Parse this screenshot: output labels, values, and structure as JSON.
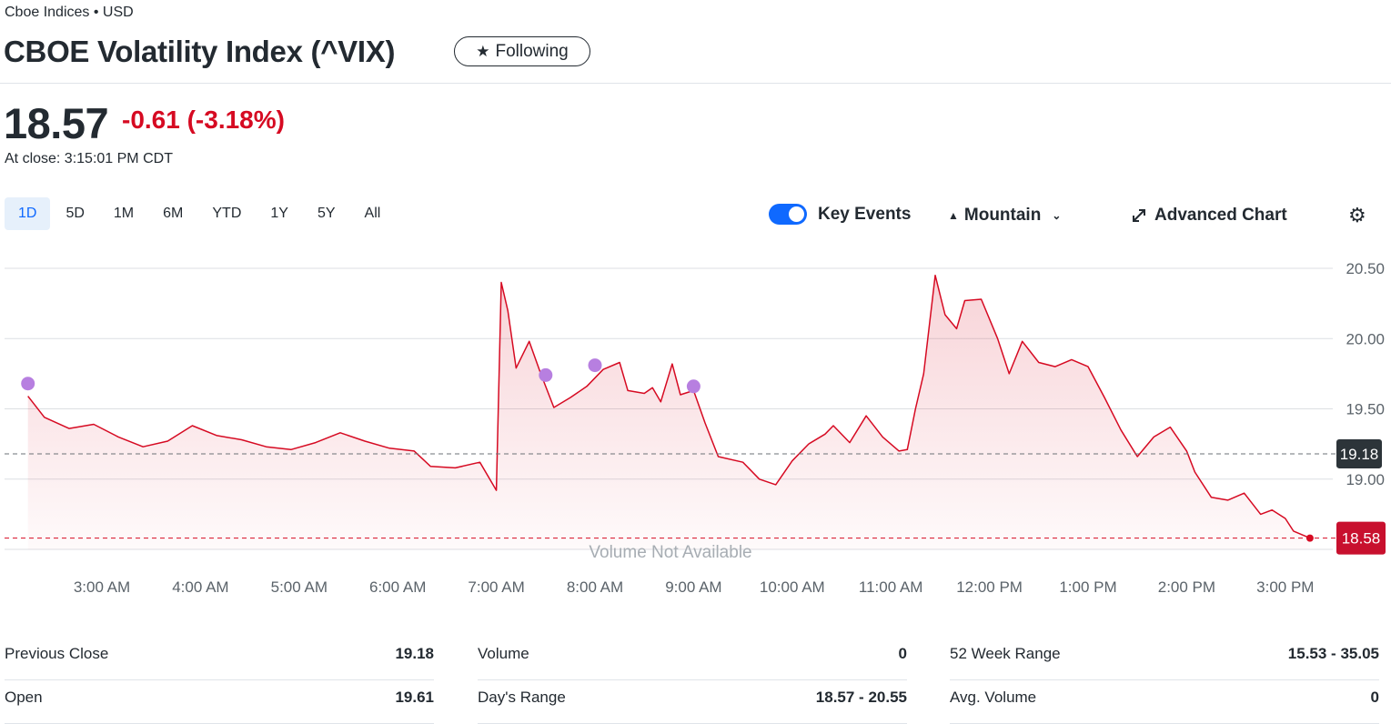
{
  "header": {
    "exchange": "Cboe Indices • USD",
    "title": "CBOE Volatility Index (^VIX)",
    "follow_label": "Following"
  },
  "quote": {
    "price": "18.57",
    "change": "-0.61 (-3.18%)",
    "close_time": "At close: 3:15:01 PM CDT"
  },
  "toolbar": {
    "ranges": [
      "1D",
      "5D",
      "1M",
      "6M",
      "YTD",
      "1Y",
      "5Y",
      "All"
    ],
    "active_range": "1D",
    "key_events_label": "Key Events",
    "key_events_on": true,
    "chart_type_label": "Mountain",
    "advanced_chart_label": "Advanced Chart"
  },
  "chart_data": {
    "type": "area",
    "color": "#d60a22",
    "event_color": "#b77fe0",
    "x_labels": [
      "3:00 AM",
      "4:00 AM",
      "5:00 AM",
      "6:00 AM",
      "7:00 AM",
      "8:00 AM",
      "9:00 AM",
      "10:00 AM",
      "11:00 AM",
      "12:00 PM",
      "1:00 PM",
      "2:00 PM",
      "3:00 PM"
    ],
    "y_ticks": [
      "20.50",
      "20.00",
      "19.50",
      "19.00"
    ],
    "ylim": [
      18.5,
      20.5
    ],
    "previous_close": 19.18,
    "previous_close_label": "19.18",
    "last_price": 18.58,
    "last_price_label": "18.58",
    "volume_note": "Volume Not Available",
    "series": [
      {
        "t": "2:15 AM",
        "v": 19.59
      },
      {
        "t": "2:25 AM",
        "v": 19.44
      },
      {
        "t": "2:40 AM",
        "v": 19.36
      },
      {
        "t": "2:55 AM",
        "v": 19.39
      },
      {
        "t": "3:10 AM",
        "v": 19.3
      },
      {
        "t": "3:25 AM",
        "v": 19.23
      },
      {
        "t": "3:40 AM",
        "v": 19.27
      },
      {
        "t": "3:55 AM",
        "v": 19.38
      },
      {
        "t": "4:10 AM",
        "v": 19.31
      },
      {
        "t": "4:25 AM",
        "v": 19.28
      },
      {
        "t": "4:40 AM",
        "v": 19.23
      },
      {
        "t": "4:55 AM",
        "v": 19.21
      },
      {
        "t": "5:10 AM",
        "v": 19.26
      },
      {
        "t": "5:25 AM",
        "v": 19.33
      },
      {
        "t": "5:40 AM",
        "v": 19.27
      },
      {
        "t": "5:55 AM",
        "v": 19.22
      },
      {
        "t": "6:10 AM",
        "v": 19.2
      },
      {
        "t": "6:20 AM",
        "v": 19.09
      },
      {
        "t": "6:35 AM",
        "v": 19.08
      },
      {
        "t": "6:50 AM",
        "v": 19.12
      },
      {
        "t": "7:00 AM",
        "v": 18.92
      },
      {
        "t": "7:03 AM",
        "v": 20.4
      },
      {
        "t": "7:07 AM",
        "v": 20.2
      },
      {
        "t": "7:12 AM",
        "v": 19.79
      },
      {
        "t": "7:20 AM",
        "v": 19.98
      },
      {
        "t": "7:27 AM",
        "v": 19.75
      },
      {
        "t": "7:35 AM",
        "v": 19.51
      },
      {
        "t": "7:45 AM",
        "v": 19.58
      },
      {
        "t": "7:55 AM",
        "v": 19.66
      },
      {
        "t": "8:05 AM",
        "v": 19.78
      },
      {
        "t": "8:15 AM",
        "v": 19.83
      },
      {
        "t": "8:20 AM",
        "v": 19.63
      },
      {
        "t": "8:30 AM",
        "v": 19.61
      },
      {
        "t": "8:35 AM",
        "v": 19.65
      },
      {
        "t": "8:40 AM",
        "v": 19.55
      },
      {
        "t": "8:47 AM",
        "v": 19.82
      },
      {
        "t": "8:52 AM",
        "v": 19.6
      },
      {
        "t": "9:00 AM",
        "v": 19.63
      },
      {
        "t": "9:07 AM",
        "v": 19.4
      },
      {
        "t": "9:15 AM",
        "v": 19.16
      },
      {
        "t": "9:30 AM",
        "v": 19.12
      },
      {
        "t": "9:40 AM",
        "v": 19.0
      },
      {
        "t": "9:50 AM",
        "v": 18.96
      },
      {
        "t": "10:00 AM",
        "v": 19.13
      },
      {
        "t": "10:10 AM",
        "v": 19.25
      },
      {
        "t": "10:20 AM",
        "v": 19.32
      },
      {
        "t": "10:25 AM",
        "v": 19.38
      },
      {
        "t": "10:35 AM",
        "v": 19.26
      },
      {
        "t": "10:45 AM",
        "v": 19.45
      },
      {
        "t": "10:55 AM",
        "v": 19.3
      },
      {
        "t": "11:05 AM",
        "v": 19.2
      },
      {
        "t": "11:10 AM",
        "v": 19.21
      },
      {
        "t": "11:15 AM",
        "v": 19.5
      },
      {
        "t": "11:20 AM",
        "v": 19.75
      },
      {
        "t": "11:27 AM",
        "v": 20.45
      },
      {
        "t": "11:33 AM",
        "v": 20.17
      },
      {
        "t": "11:40 AM",
        "v": 20.07
      },
      {
        "t": "11:45 AM",
        "v": 20.27
      },
      {
        "t": "11:55 AM",
        "v": 20.28
      },
      {
        "t": "12:05 PM",
        "v": 20.0
      },
      {
        "t": "12:12 PM",
        "v": 19.75
      },
      {
        "t": "12:20 PM",
        "v": 19.98
      },
      {
        "t": "12:30 PM",
        "v": 19.83
      },
      {
        "t": "12:40 PM",
        "v": 19.8
      },
      {
        "t": "12:50 PM",
        "v": 19.85
      },
      {
        "t": "1:00 PM",
        "v": 19.8
      },
      {
        "t": "1:10 PM",
        "v": 19.58
      },
      {
        "t": "1:20 PM",
        "v": 19.35
      },
      {
        "t": "1:30 PM",
        "v": 19.16
      },
      {
        "t": "1:40 PM",
        "v": 19.3
      },
      {
        "t": "1:50 PM",
        "v": 19.37
      },
      {
        "t": "2:00 PM",
        "v": 19.2
      },
      {
        "t": "2:05 PM",
        "v": 19.05
      },
      {
        "t": "2:15 PM",
        "v": 18.87
      },
      {
        "t": "2:25 PM",
        "v": 18.85
      },
      {
        "t": "2:35 PM",
        "v": 18.9
      },
      {
        "t": "2:45 PM",
        "v": 18.75
      },
      {
        "t": "2:52 PM",
        "v": 18.78
      },
      {
        "t": "3:00 PM",
        "v": 18.72
      },
      {
        "t": "3:05 PM",
        "v": 18.63
      },
      {
        "t": "3:15 PM",
        "v": 18.58
      }
    ],
    "events": [
      {
        "t": "2:15 AM",
        "v": 19.68
      },
      {
        "t": "7:30 AM",
        "v": 19.74
      },
      {
        "t": "8:00 AM",
        "v": 19.81
      },
      {
        "t": "9:00 AM",
        "v": 19.66
      }
    ]
  },
  "stats": [
    [
      {
        "label": "Previous Close",
        "value": "19.18"
      },
      {
        "label": "Open",
        "value": "19.61"
      }
    ],
    [
      {
        "label": "Volume",
        "value": "0"
      },
      {
        "label": "Day's Range",
        "value": "18.57 - 20.55"
      }
    ],
    [
      {
        "label": "52 Week Range",
        "value": "15.53 - 35.05"
      },
      {
        "label": "Avg. Volume",
        "value": "0"
      }
    ]
  ]
}
